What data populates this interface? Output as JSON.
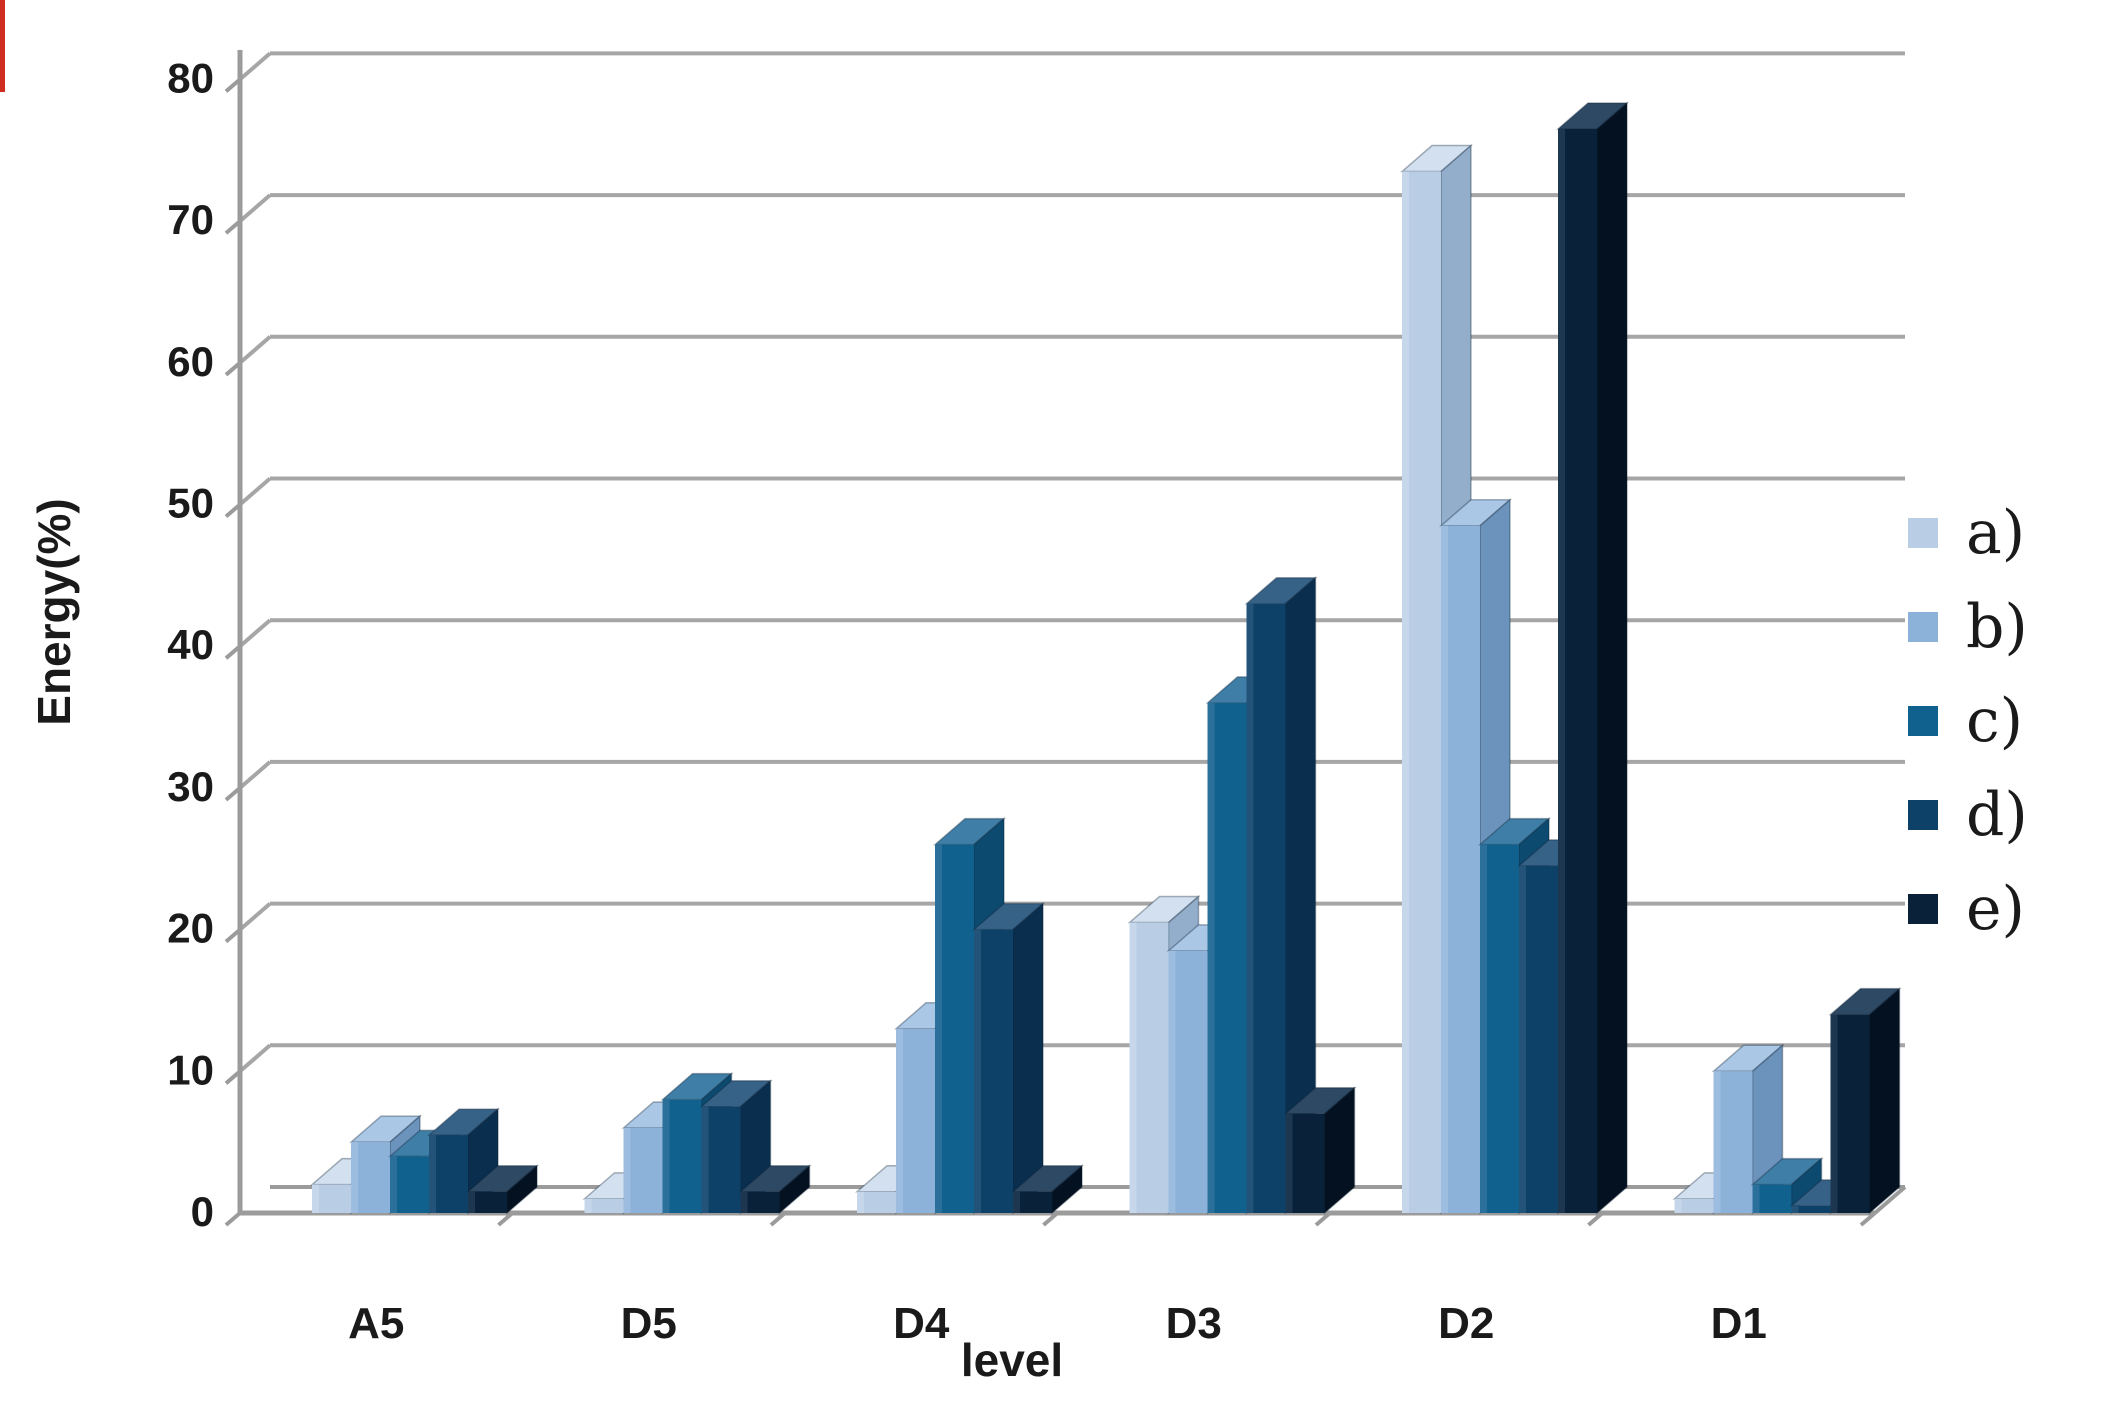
{
  "figure": {
    "background": "#ffffff",
    "left_edge_artifact_color": "#cf2d1f"
  },
  "chart_data": {
    "type": "bar",
    "subtype": "3d-clustered-column",
    "title": "",
    "xlabel": "level",
    "ylabel": "Energy(%)",
    "ylim": [
      0,
      80
    ],
    "yticks": [
      0,
      10,
      20,
      30,
      40,
      50,
      60,
      70,
      80
    ],
    "grid": true,
    "grid_color": "#a6a6a6",
    "axis_color": "#9b9b9b",
    "text_color": "#1a1a1a",
    "legend_position": "right",
    "categories": [
      "A5",
      "D5",
      "D4",
      "D3",
      "D2",
      "D1"
    ],
    "series": [
      {
        "name": "a)",
        "color": "#b9cde5",
        "top_color": "#d3e0f0",
        "side_color": "#93aecb",
        "values": [
          2,
          1,
          1.5,
          20.5,
          73.5,
          1
        ]
      },
      {
        "name": "b)",
        "color": "#8cb2d9",
        "top_color": "#aac7e6",
        "side_color": "#6c93bb",
        "values": [
          5,
          6,
          13,
          18.5,
          48.5,
          10
        ]
      },
      {
        "name": "c)",
        "color": "#11618f",
        "top_color": "#3f7ea6",
        "side_color": "#0c4a70",
        "values": [
          4,
          8,
          26,
          36,
          26,
          2
        ]
      },
      {
        "name": "d)",
        "color": "#0d4168",
        "top_color": "#376287",
        "side_color": "#092e4e",
        "values": [
          5.5,
          7.5,
          20,
          43,
          24.5,
          0.5
        ]
      },
      {
        "name": "e)",
        "color": "#0a2239",
        "top_color": "#2e4964",
        "side_color": "#041120",
        "values": [
          1.5,
          1.5,
          1.5,
          7,
          76.5,
          14
        ]
      }
    ]
  }
}
